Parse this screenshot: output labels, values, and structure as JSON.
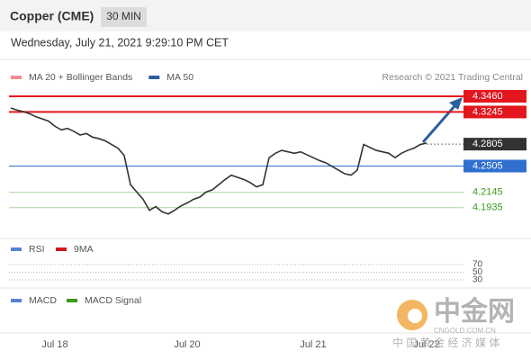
{
  "chart_data": {
    "type": "line",
    "title": "Copper (CME)",
    "interval": "30 MIN",
    "subtitle": "Wednesday, July 21, 2021 9:29:10 PM CET",
    "legend": [
      {
        "name": "MA 20 + Bollinger Bands",
        "color": "#f28b8b"
      },
      {
        "name": "MA 50",
        "color": "#2c5f9e"
      }
    ],
    "credit": "Research © 2021 Trading Central",
    "color": "#333333",
    "categories": [
      null,
      null,
      null,
      null,
      null,
      null,
      null,
      "Jul 18",
      null,
      null,
      null,
      null,
      null,
      null,
      null,
      null,
      null,
      null,
      null,
      null,
      null,
      null,
      null,
      null,
      null,
      null,
      null,
      null,
      "Jul 20",
      null,
      null,
      null,
      null,
      null,
      null,
      null,
      null,
      null,
      null,
      null,
      null,
      null,
      null,
      null,
      null,
      null,
      null,
      null,
      "Jul 21",
      null,
      null,
      null,
      null,
      null,
      null,
      null,
      null,
      null,
      null,
      null,
      null,
      null,
      null,
      null,
      null,
      null,
      "Jul 22"
    ],
    "values": [
      4.33,
      4.327,
      4.325,
      4.322,
      4.318,
      4.315,
      4.312,
      4.305,
      4.3,
      4.302,
      4.298,
      4.293,
      4.295,
      4.29,
      4.288,
      4.285,
      4.28,
      4.275,
      4.265,
      4.225,
      4.215,
      4.205,
      4.19,
      4.195,
      4.188,
      4.185,
      4.19,
      4.196,
      4.2,
      4.205,
      4.208,
      4.215,
      4.218,
      4.225,
      4.232,
      4.238,
      4.235,
      4.232,
      4.228,
      4.222,
      4.225,
      4.262,
      4.268,
      4.272,
      4.27,
      4.268,
      4.27,
      4.266,
      4.262,
      4.258,
      4.255,
      4.25,
      4.245,
      4.24,
      4.238,
      4.245,
      4.28,
      4.276,
      4.272,
      4.27,
      4.268,
      4.262,
      4.268,
      4.272,
      4.275,
      4.28,
      4.282
    ],
    "ylim": [
      4.16,
      4.36
    ],
    "levels": [
      {
        "value": 4.346,
        "label": "4.3460",
        "color": "#e3161d",
        "style": "box",
        "line": "solid"
      },
      {
        "value": 4.3245,
        "label": "4.3245",
        "color": "#e3161d",
        "style": "box",
        "line": "solid"
      },
      {
        "value": 4.2805,
        "label": "4.2805",
        "color": "#333333",
        "style": "box",
        "line": "dotted"
      },
      {
        "value": 4.2505,
        "label": "4.2505",
        "color": "#2f6fd0",
        "style": "box",
        "line": "solid"
      },
      {
        "value": 4.2145,
        "label": "4.2145",
        "color": "#3a9a1a",
        "style": "text",
        "line": "solid"
      },
      {
        "value": 4.1935,
        "label": "4.1935",
        "color": "#3a9a1a",
        "style": "text",
        "line": "solid"
      }
    ],
    "rsi": {
      "legend": [
        {
          "name": "RSI",
          "color": "#5b7fd6"
        },
        {
          "name": "9MA",
          "color": "#d01818"
        }
      ],
      "ylim": [
        20,
        80
      ],
      "yticks": [
        70,
        50,
        30
      ]
    },
    "macd": {
      "legend": [
        {
          "name": "MACD",
          "color": "#5b7fd6"
        },
        {
          "name": "MACD Signal",
          "color": "#3a9a1a"
        }
      ]
    },
    "watermark": {
      "logo": "中金网",
      "site": "CNGOLD.COM.CN",
      "slogan": "中 国 黄 金 经 济 媒 体"
    }
  }
}
